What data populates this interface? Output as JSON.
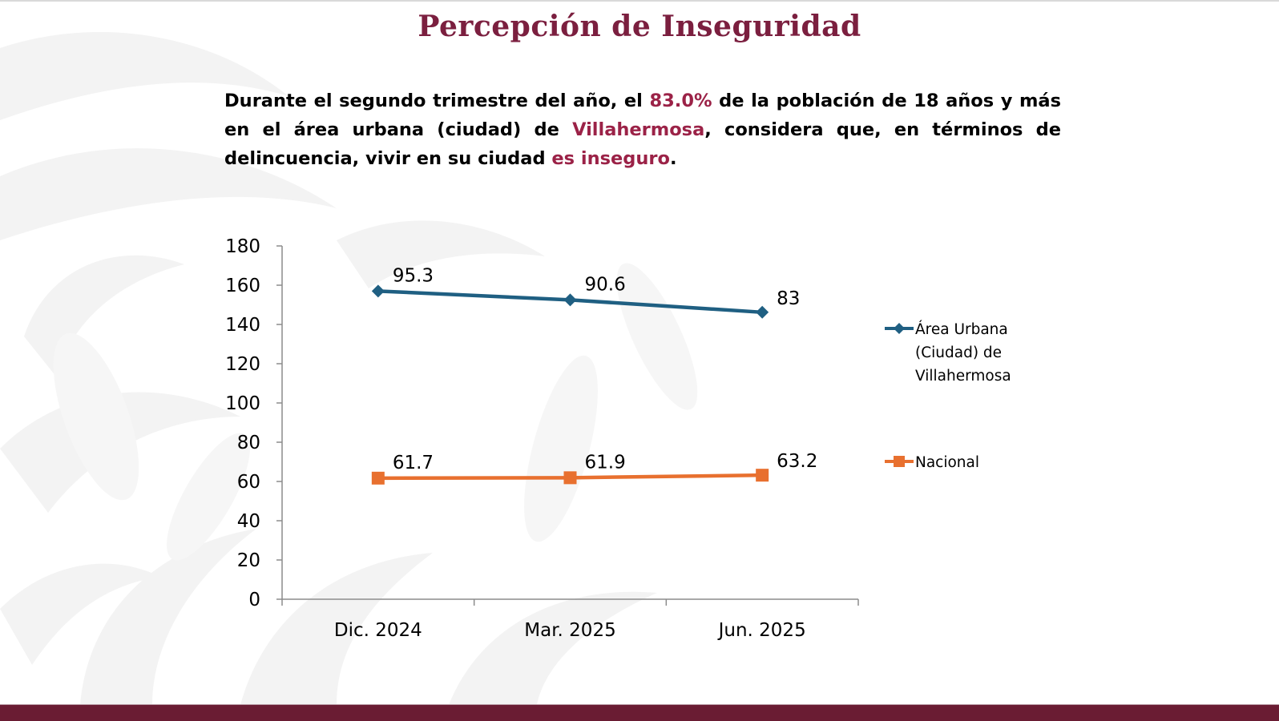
{
  "slide": {
    "title": "Percepción de Inseguridad",
    "summary": {
      "part1": "Durante el segundo trimestre del año, el ",
      "highlight1": "83.0%",
      "part2": " de la población de 18 años y más en el área urbana (ciudad) de ",
      "highlight2": "Villahermosa",
      "part3": ", considera que, en términos de delincuencia, vivir en su ciudad ",
      "highlight3": "es inseguro",
      "part4": "."
    }
  },
  "colors": {
    "title": "#7b1f3f",
    "highlight": "#9b2247",
    "urban_series": "#1f5f82",
    "national_series": "#e8702f",
    "axis": "#8c8c8c",
    "footer_band": "#6a1c33"
  },
  "chart_data": {
    "type": "line",
    "stacked": true,
    "title": "",
    "xlabel": "",
    "ylabel": "",
    "categories": [
      "Dic. 2024",
      "Mar. 2025",
      "Jun. 2025"
    ],
    "series": [
      {
        "name": "Nacional",
        "values": [
          61.7,
          61.9,
          63.2
        ],
        "marker": "square",
        "color": "#e8702f",
        "labels": [
          "61.7",
          "61.9",
          "63.2"
        ]
      },
      {
        "name": "Área Urbana (Ciudad) de Villahermosa",
        "values": [
          95.3,
          90.6,
          83
        ],
        "marker": "diamond",
        "color": "#1f5f82",
        "labels": [
          "95.3",
          "90.6",
          "83"
        ],
        "legend_lines": [
          "Área Urbana",
          "(Ciudad) de",
          "Villahermosa"
        ]
      }
    ],
    "ylim": [
      0,
      180
    ],
    "yticks": [
      0,
      20,
      40,
      60,
      80,
      100,
      120,
      140,
      160,
      180
    ],
    "ytick_labels": [
      "0",
      "20",
      "40",
      "60",
      "80",
      "100",
      "120",
      "140",
      "160",
      "180"
    ],
    "grid": false,
    "legend_position": "right"
  }
}
